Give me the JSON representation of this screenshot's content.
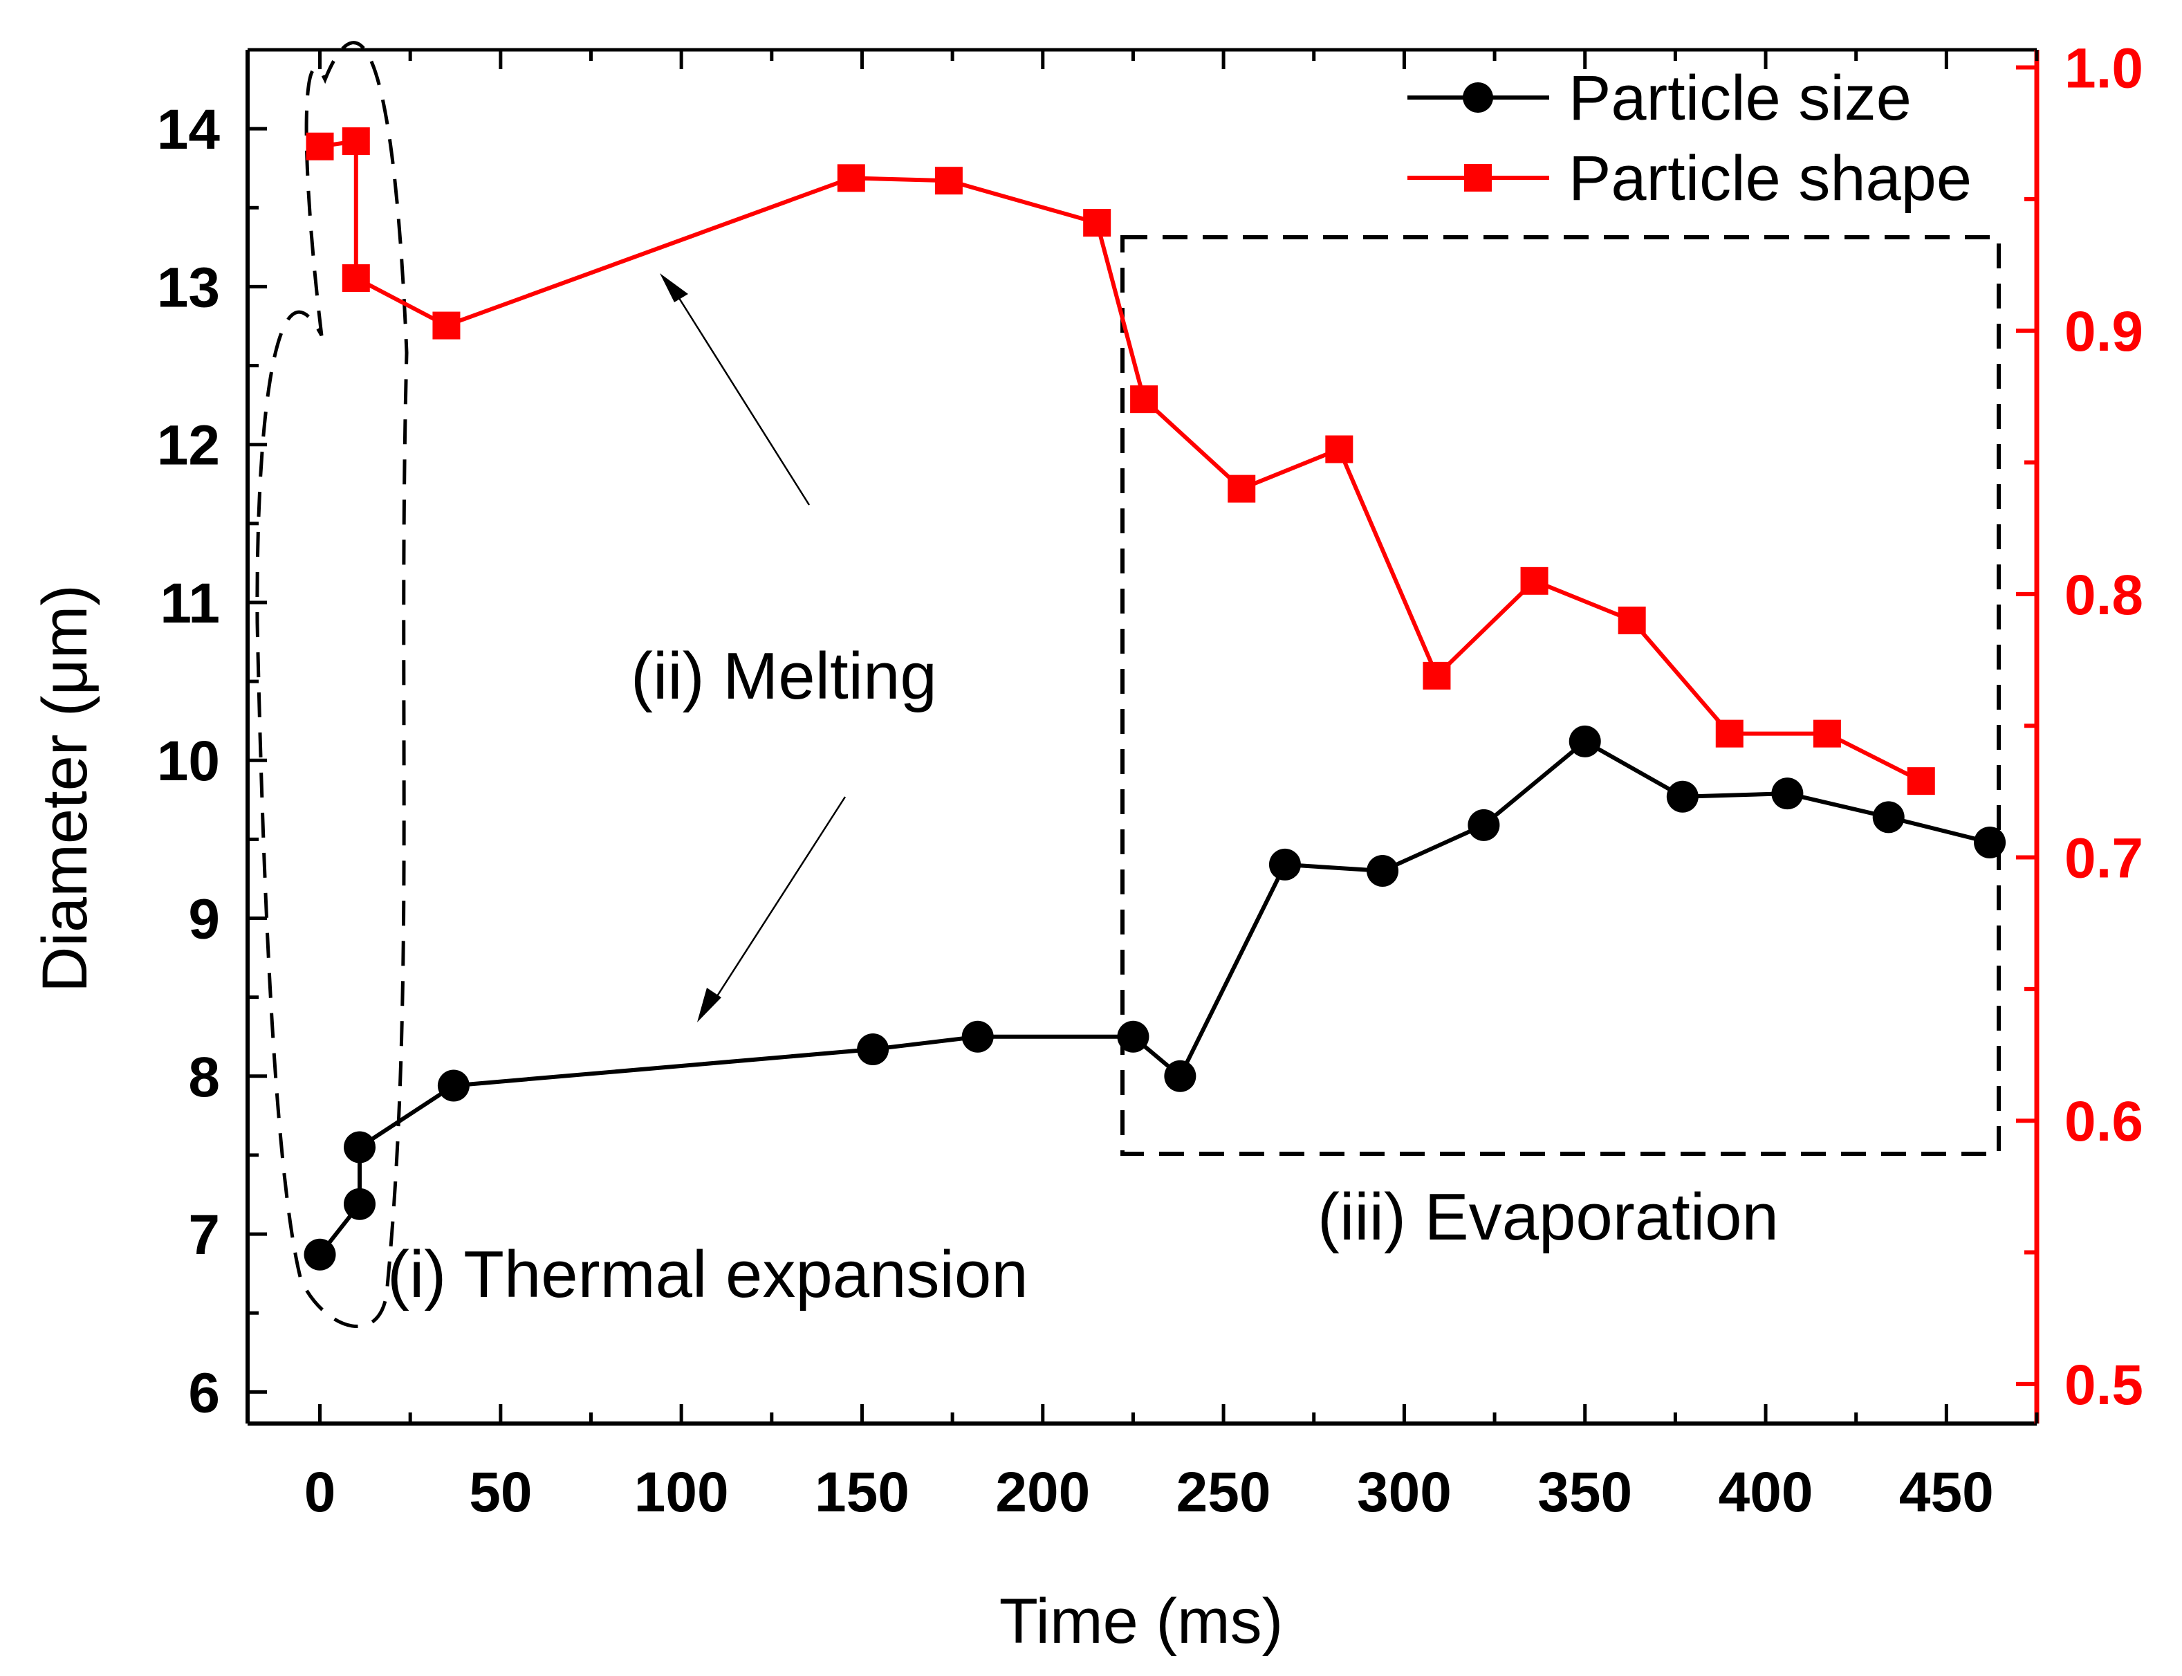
{
  "chart_data": {
    "type": "line",
    "title": "",
    "xlabel": "Time (ms)",
    "ylabel": "Diameter (μm)",
    "y2label": "",
    "xlim": [
      -20,
      475
    ],
    "ylim": [
      5.8,
      14.5
    ],
    "y2lim": [
      0.485,
      1.0067
    ],
    "xticks": [
      0,
      50,
      100,
      150,
      200,
      250,
      300,
      350,
      400,
      450
    ],
    "xtick_labels": [
      "0",
      "50",
      "100",
      "150",
      "200",
      "250",
      "300",
      "350",
      "400",
      "450"
    ],
    "yticks": [
      6,
      7,
      8,
      9,
      10,
      11,
      12,
      13,
      14
    ],
    "ytick_labels": [
      "6",
      "7",
      "8",
      "9",
      "10",
      "11",
      "12",
      "13",
      "14"
    ],
    "y2ticks": [
      0.5,
      0.6,
      0.7,
      0.8,
      0.9,
      1.0
    ],
    "y2tick_labels": [
      "0.5",
      "0.6",
      "0.7",
      "0.8",
      "0.9",
      "1.0"
    ],
    "legend_position": "top-right",
    "series": [
      {
        "name": "Particle size",
        "axis": "left",
        "color": "#000000",
        "marker": "circle",
        "x": [
          0,
          11,
          11,
          37,
          153,
          182,
          225,
          238,
          267,
          294,
          322,
          350,
          377,
          406,
          434,
          462
        ],
        "y": [
          6.87,
          7.19,
          7.55,
          7.94,
          8.17,
          8.25,
          8.25,
          8.0,
          9.34,
          9.3,
          9.59,
          10.12,
          9.77,
          9.79,
          9.64,
          9.48
        ]
      },
      {
        "name": "Particle shape",
        "axis": "right",
        "color": "#ff0000",
        "marker": "square",
        "x": [
          0,
          10,
          10,
          35,
          147,
          174,
          215,
          228,
          255,
          282,
          309,
          336,
          363,
          390,
          417,
          443
        ],
        "y": [
          0.97,
          0.972,
          0.92,
          0.902,
          0.958,
          0.957,
          0.941,
          0.874,
          0.84,
          0.855,
          0.769,
          0.805,
          0.79,
          0.747,
          0.747,
          0.729
        ]
      }
    ],
    "annotations": [
      {
        "text": "(i) Thermal expansion"
      },
      {
        "text": "(ii) Melting"
      },
      {
        "text": "(iii) Evaporation"
      }
    ]
  }
}
